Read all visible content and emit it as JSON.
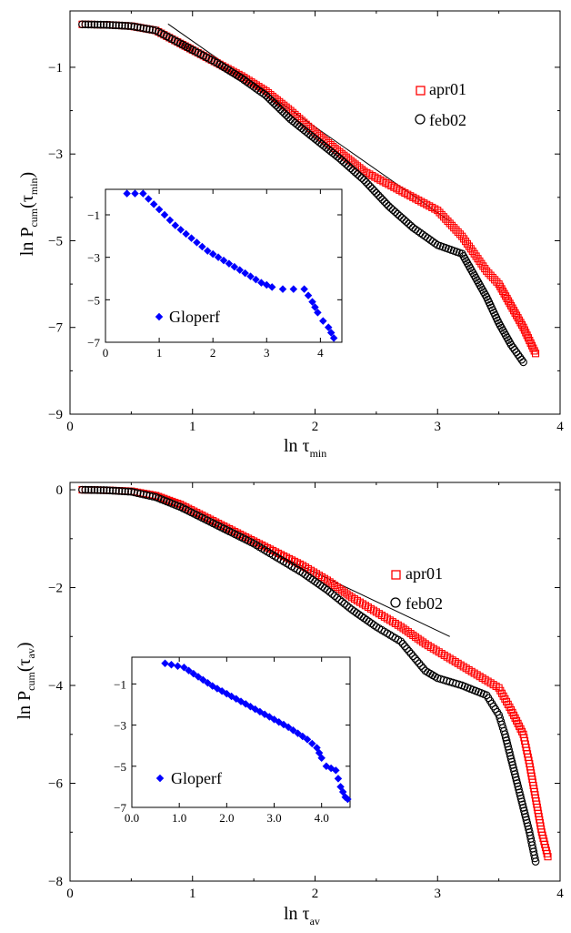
{
  "chart_data": [
    {
      "type": "scatter",
      "xlabel": {
        "main": "ln τ",
        "sub": "min"
      },
      "ylabel": {
        "pre": "ln P",
        "sub1": "cum",
        "mid": "(τ",
        "sub2": "min",
        "post": ")"
      },
      "xlim": [
        0,
        4
      ],
      "ylim": [
        -9,
        0.3
      ],
      "xticks": [
        "0",
        "1",
        "2",
        "3",
        "4"
      ],
      "yticks": [
        "−1",
        "−3",
        "−5",
        "−7",
        "−9"
      ],
      "ytick_values": [
        -1,
        -3,
        -5,
        -7,
        -9
      ],
      "legend_position": "top-right",
      "series": [
        {
          "name": "apr01",
          "marker": "square",
          "color": "#ff0000",
          "points": [
            [
              0.1,
              -0.01
            ],
            [
              0.3,
              -0.02
            ],
            [
              0.5,
              -0.05
            ],
            [
              0.7,
              -0.15
            ],
            [
              0.9,
              -0.45
            ],
            [
              1.0,
              -0.6
            ],
            [
              1.2,
              -0.9
            ],
            [
              1.4,
              -1.2
            ],
            [
              1.6,
              -1.55
            ],
            [
              1.8,
              -2.0
            ],
            [
              2.0,
              -2.5
            ],
            [
              2.2,
              -2.95
            ],
            [
              2.4,
              -3.4
            ],
            [
              2.6,
              -3.7
            ],
            [
              2.8,
              -4.0
            ],
            [
              3.0,
              -4.3
            ],
            [
              3.2,
              -4.9
            ],
            [
              3.4,
              -5.7
            ],
            [
              3.5,
              -6.0
            ],
            [
              3.6,
              -6.5
            ],
            [
              3.7,
              -7.0
            ],
            [
              3.8,
              -7.6
            ]
          ]
        },
        {
          "name": "feb02",
          "marker": "circle",
          "color": "#000000",
          "points": [
            [
              0.1,
              -0.01
            ],
            [
              0.3,
              -0.02
            ],
            [
              0.5,
              -0.05
            ],
            [
              0.7,
              -0.15
            ],
            [
              0.9,
              -0.45
            ],
            [
              1.0,
              -0.6
            ],
            [
              1.2,
              -0.9
            ],
            [
              1.4,
              -1.25
            ],
            [
              1.6,
              -1.65
            ],
            [
              1.8,
              -2.2
            ],
            [
              2.0,
              -2.65
            ],
            [
              2.2,
              -3.1
            ],
            [
              2.4,
              -3.6
            ],
            [
              2.6,
              -4.2
            ],
            [
              2.8,
              -4.7
            ],
            [
              3.0,
              -5.1
            ],
            [
              3.2,
              -5.3
            ],
            [
              3.3,
              -5.8
            ],
            [
              3.4,
              -6.3
            ],
            [
              3.5,
              -6.9
            ],
            [
              3.6,
              -7.4
            ],
            [
              3.7,
              -7.8
            ]
          ]
        }
      ],
      "reference_line": [
        [
          0.8,
          0.0
        ],
        [
          3.1,
          -4.55
        ]
      ],
      "inset": {
        "xlim": [
          0,
          4.4
        ],
        "ylim": [
          -7,
          0.2
        ],
        "xticks": [
          "0",
          "1",
          "2",
          "3",
          "4"
        ],
        "xtick_values": [
          0,
          1,
          2,
          3,
          4
        ],
        "yticks": [
          "−1",
          "−3",
          "−5",
          "−7"
        ],
        "ytick_values": [
          -1,
          -3,
          -5,
          -7
        ],
        "series": {
          "name": "Gloperf",
          "marker": "diamond",
          "color": "#0000ff",
          "points": [
            [
              0.4,
              0.0
            ],
            [
              0.7,
              0.0
            ],
            [
              0.9,
              -0.5
            ],
            [
              1.1,
              -1.0
            ],
            [
              1.3,
              -1.5
            ],
            [
              1.5,
              -1.9
            ],
            [
              1.7,
              -2.3
            ],
            [
              1.9,
              -2.7
            ],
            [
              2.1,
              -3.0
            ],
            [
              2.3,
              -3.3
            ],
            [
              2.5,
              -3.6
            ],
            [
              2.7,
              -3.9
            ],
            [
              2.9,
              -4.2
            ],
            [
              3.1,
              -4.4
            ],
            [
              3.3,
              -4.5
            ],
            [
              3.5,
              -4.5
            ],
            [
              3.7,
              -4.5
            ],
            [
              3.85,
              -5.1
            ],
            [
              3.95,
              -5.6
            ],
            [
              4.05,
              -6.0
            ],
            [
              4.15,
              -6.3
            ],
            [
              4.25,
              -6.8
            ]
          ]
        }
      }
    },
    {
      "type": "scatter",
      "xlabel": {
        "main": "ln τ",
        "sub": "av"
      },
      "ylabel": {
        "pre": "ln P",
        "sub1": "cum",
        "mid": "(τ",
        "sub2": "av",
        "post": ")"
      },
      "xlim": [
        0,
        4
      ],
      "ylim": [
        -8,
        0.15
      ],
      "xticks": [
        "0",
        "1",
        "2",
        "3",
        "4"
      ],
      "yticks": [
        "0",
        "−2",
        "−4",
        "−6",
        "−8"
      ],
      "ytick_values": [
        0,
        -2,
        -4,
        -6,
        -8
      ],
      "legend_position": "top-right",
      "series": [
        {
          "name": "apr01",
          "marker": "square",
          "color": "#ff0000",
          "points": [
            [
              0.1,
              0.0
            ],
            [
              0.3,
              -0.01
            ],
            [
              0.5,
              -0.03
            ],
            [
              0.7,
              -0.12
            ],
            [
              0.9,
              -0.3
            ],
            [
              1.1,
              -0.55
            ],
            [
              1.3,
              -0.8
            ],
            [
              1.5,
              -1.05
            ],
            [
              1.7,
              -1.3
            ],
            [
              1.9,
              -1.55
            ],
            [
              2.1,
              -1.85
            ],
            [
              2.3,
              -2.2
            ],
            [
              2.5,
              -2.5
            ],
            [
              2.7,
              -2.8
            ],
            [
              2.9,
              -3.15
            ],
            [
              3.1,
              -3.45
            ],
            [
              3.3,
              -3.75
            ],
            [
              3.5,
              -4.05
            ],
            [
              3.6,
              -4.5
            ],
            [
              3.7,
              -5.0
            ],
            [
              3.75,
              -5.6
            ],
            [
              3.8,
              -6.3
            ],
            [
              3.85,
              -7.0
            ],
            [
              3.9,
              -7.5
            ]
          ]
        },
        {
          "name": "feb02",
          "marker": "circle",
          "color": "#000000",
          "points": [
            [
              0.1,
              0.0
            ],
            [
              0.3,
              -0.01
            ],
            [
              0.5,
              -0.04
            ],
            [
              0.7,
              -0.15
            ],
            [
              0.9,
              -0.35
            ],
            [
              1.1,
              -0.6
            ],
            [
              1.3,
              -0.85
            ],
            [
              1.5,
              -1.1
            ],
            [
              1.7,
              -1.4
            ],
            [
              1.9,
              -1.7
            ],
            [
              2.1,
              -2.05
            ],
            [
              2.3,
              -2.45
            ],
            [
              2.5,
              -2.8
            ],
            [
              2.7,
              -3.1
            ],
            [
              2.8,
              -3.4
            ],
            [
              2.9,
              -3.7
            ],
            [
              3.0,
              -3.85
            ],
            [
              3.2,
              -4.0
            ],
            [
              3.4,
              -4.2
            ],
            [
              3.5,
              -4.6
            ],
            [
              3.55,
              -5.0
            ],
            [
              3.6,
              -5.5
            ],
            [
              3.65,
              -6.0
            ],
            [
              3.7,
              -6.5
            ],
            [
              3.75,
              -7.0
            ],
            [
              3.8,
              -7.6
            ]
          ]
        }
      ],
      "reference_line": [
        [
          1.0,
          -0.5
        ],
        [
          3.1,
          -3.0
        ]
      ],
      "inset": {
        "xlim": [
          0,
          4.6
        ],
        "ylim": [
          -7,
          0.3
        ],
        "xticks": [
          "0.0",
          "1.0",
          "2.0",
          "3.0",
          "4.0"
        ],
        "xtick_values": [
          0,
          1,
          2,
          3,
          4
        ],
        "yticks": [
          "−1",
          "−3",
          "−5",
          "−7"
        ],
        "ytick_values": [
          -1,
          -3,
          -5,
          -7
        ],
        "series": {
          "name": "Gloperf",
          "marker": "diamond",
          "color": "#0000ff",
          "points": [
            [
              0.7,
              0.0
            ],
            [
              1.1,
              -0.2
            ],
            [
              1.3,
              -0.5
            ],
            [
              1.5,
              -0.8
            ],
            [
              1.7,
              -1.1
            ],
            [
              1.9,
              -1.35
            ],
            [
              2.1,
              -1.6
            ],
            [
              2.3,
              -1.85
            ],
            [
              2.5,
              -2.1
            ],
            [
              2.7,
              -2.35
            ],
            [
              2.9,
              -2.6
            ],
            [
              3.1,
              -2.85
            ],
            [
              3.3,
              -3.1
            ],
            [
              3.5,
              -3.4
            ],
            [
              3.7,
              -3.7
            ],
            [
              3.9,
              -4.1
            ],
            [
              4.0,
              -4.6
            ],
            [
              4.1,
              -5.0
            ],
            [
              4.3,
              -5.2
            ],
            [
              4.4,
              -6.0
            ],
            [
              4.5,
              -6.5
            ],
            [
              4.55,
              -6.6
            ]
          ]
        }
      }
    }
  ]
}
